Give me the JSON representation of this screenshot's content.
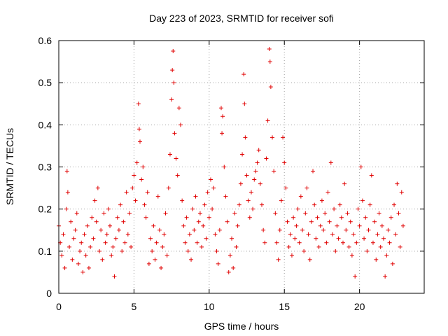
{
  "chart_data": {
    "type": "scatter",
    "title": "Day 223 of 2023, SRMTID for receiver sofi",
    "xlabel": "GPS time / hours",
    "ylabel": "SRMTID / TECUs",
    "xlim": [
      0,
      24.3
    ],
    "ylim": [
      0,
      0.6
    ],
    "x_ticks": [
      0,
      5,
      10,
      15,
      20
    ],
    "x_tick_labels": [
      "0",
      "5",
      "10",
      "15",
      "20"
    ],
    "y_ticks": [
      0,
      0.1,
      0.2,
      0.3,
      0.4,
      0.5,
      0.6
    ],
    "y_tick_labels": [
      "0",
      "0.1",
      "0.2",
      "0.3",
      "0.4",
      "0.5",
      "0.6"
    ],
    "grid": true,
    "marker": "plus",
    "series_color": "#e00000",
    "series": [
      {
        "name": "SRMTID",
        "points": [
          [
            0.0,
            0.16
          ],
          [
            0.1,
            0.12
          ],
          [
            0.2,
            0.09
          ],
          [
            0.3,
            0.14
          ],
          [
            0.4,
            0.06
          ],
          [
            0.5,
            0.2
          ],
          [
            0.55,
            0.29
          ],
          [
            0.6,
            0.24
          ],
          [
            0.7,
            0.11
          ],
          [
            0.8,
            0.17
          ],
          [
            0.9,
            0.08
          ],
          [
            1.0,
            0.13
          ],
          [
            1.1,
            0.15
          ],
          [
            1.2,
            0.19
          ],
          [
            1.3,
            0.07
          ],
          [
            1.4,
            0.1
          ],
          [
            1.5,
            0.12
          ],
          [
            1.6,
            0.05
          ],
          [
            1.7,
            0.14
          ],
          [
            1.8,
            0.09
          ],
          [
            1.9,
            0.16
          ],
          [
            2.0,
            0.06
          ],
          [
            2.1,
            0.11
          ],
          [
            2.2,
            0.18
          ],
          [
            2.3,
            0.13
          ],
          [
            2.4,
            0.22
          ],
          [
            2.5,
            0.17
          ],
          [
            2.6,
            0.25
          ],
          [
            2.7,
            0.1
          ],
          [
            2.8,
            0.15
          ],
          [
            2.9,
            0.08
          ],
          [
            3.0,
            0.19
          ],
          [
            3.1,
            0.12
          ],
          [
            3.2,
            0.14
          ],
          [
            3.3,
            0.2
          ],
          [
            3.4,
            0.16
          ],
          [
            3.5,
            0.09
          ],
          [
            3.6,
            0.11
          ],
          [
            3.7,
            0.04
          ],
          [
            3.8,
            0.13
          ],
          [
            3.9,
            0.18
          ],
          [
            4.0,
            0.15
          ],
          [
            4.1,
            0.21
          ],
          [
            4.2,
            0.1
          ],
          [
            4.3,
            0.17
          ],
          [
            4.4,
            0.12
          ],
          [
            4.5,
            0.24
          ],
          [
            4.6,
            0.14
          ],
          [
            4.7,
            0.19
          ],
          [
            4.8,
            0.11
          ],
          [
            4.9,
            0.25
          ],
          [
            5.0,
            0.28
          ],
          [
            5.1,
            0.22
          ],
          [
            5.2,
            0.31
          ],
          [
            5.3,
            0.45
          ],
          [
            5.35,
            0.39
          ],
          [
            5.4,
            0.36
          ],
          [
            5.5,
            0.27
          ],
          [
            5.6,
            0.3
          ],
          [
            5.7,
            0.21
          ],
          [
            5.8,
            0.18
          ],
          [
            5.9,
            0.24
          ],
          [
            6.0,
            0.07
          ],
          [
            6.1,
            0.13
          ],
          [
            6.2,
            0.1
          ],
          [
            6.3,
            0.16
          ],
          [
            6.4,
            0.08
          ],
          [
            6.5,
            0.12
          ],
          [
            6.6,
            0.23
          ],
          [
            6.7,
            0.15
          ],
          [
            6.8,
            0.06
          ],
          [
            6.9,
            0.11
          ],
          [
            7.0,
            0.14
          ],
          [
            7.1,
            0.19
          ],
          [
            7.2,
            0.09
          ],
          [
            7.3,
            0.25
          ],
          [
            7.4,
            0.33
          ],
          [
            7.5,
            0.46
          ],
          [
            7.55,
            0.53
          ],
          [
            7.6,
            0.575
          ],
          [
            7.65,
            0.5
          ],
          [
            7.7,
            0.38
          ],
          [
            7.8,
            0.32
          ],
          [
            7.9,
            0.28
          ],
          [
            8.0,
            0.44
          ],
          [
            8.1,
            0.4
          ],
          [
            8.2,
            0.22
          ],
          [
            8.3,
            0.16
          ],
          [
            8.4,
            0.12
          ],
          [
            8.5,
            0.18
          ],
          [
            8.6,
            0.1
          ],
          [
            8.7,
            0.14
          ],
          [
            8.8,
            0.08
          ],
          [
            8.9,
            0.2
          ],
          [
            9.0,
            0.15
          ],
          [
            9.1,
            0.23
          ],
          [
            9.2,
            0.12
          ],
          [
            9.3,
            0.17
          ],
          [
            9.4,
            0.19
          ],
          [
            9.5,
            0.11
          ],
          [
            9.6,
            0.16
          ],
          [
            9.7,
            0.21
          ],
          [
            9.8,
            0.13
          ],
          [
            9.9,
            0.24
          ],
          [
            10.0,
            0.18
          ],
          [
            10.1,
            0.27
          ],
          [
            10.2,
            0.2
          ],
          [
            10.3,
            0.25
          ],
          [
            10.4,
            0.14
          ],
          [
            10.5,
            0.1
          ],
          [
            10.6,
            0.07
          ],
          [
            10.7,
            0.15
          ],
          [
            10.8,
            0.44
          ],
          [
            10.85,
            0.38
          ],
          [
            10.9,
            0.42
          ],
          [
            11.0,
            0.3
          ],
          [
            11.1,
            0.23
          ],
          [
            11.2,
            0.17
          ],
          [
            11.3,
            0.05
          ],
          [
            11.4,
            0.09
          ],
          [
            11.5,
            0.13
          ],
          [
            11.6,
            0.06
          ],
          [
            11.7,
            0.19
          ],
          [
            11.8,
            0.11
          ],
          [
            11.9,
            0.16
          ],
          [
            12.0,
            0.21
          ],
          [
            12.1,
            0.26
          ],
          [
            12.2,
            0.33
          ],
          [
            12.3,
            0.52
          ],
          [
            12.35,
            0.45
          ],
          [
            12.4,
            0.37
          ],
          [
            12.5,
            0.28
          ],
          [
            12.6,
            0.22
          ],
          [
            12.7,
            0.18
          ],
          [
            12.8,
            0.24
          ],
          [
            12.9,
            0.2
          ],
          [
            13.0,
            0.27
          ],
          [
            13.1,
            0.29
          ],
          [
            13.2,
            0.31
          ],
          [
            13.3,
            0.34
          ],
          [
            13.4,
            0.26
          ],
          [
            13.5,
            0.21
          ],
          [
            13.6,
            0.15
          ],
          [
            13.7,
            0.12
          ],
          [
            13.8,
            0.32
          ],
          [
            13.9,
            0.41
          ],
          [
            14.0,
            0.58
          ],
          [
            14.05,
            0.55
          ],
          [
            14.1,
            0.49
          ],
          [
            14.2,
            0.37
          ],
          [
            14.3,
            0.29
          ],
          [
            14.4,
            0.19
          ],
          [
            14.5,
            0.12
          ],
          [
            14.6,
            0.08
          ],
          [
            14.7,
            0.15
          ],
          [
            14.8,
            0.22
          ],
          [
            14.9,
            0.37
          ],
          [
            15.0,
            0.31
          ],
          [
            15.1,
            0.25
          ],
          [
            15.2,
            0.17
          ],
          [
            15.3,
            0.11
          ],
          [
            15.4,
            0.14
          ],
          [
            15.5,
            0.09
          ],
          [
            15.6,
            0.18
          ],
          [
            15.7,
            0.13
          ],
          [
            15.8,
            0.16
          ],
          [
            15.9,
            0.2
          ],
          [
            16.0,
            0.12
          ],
          [
            16.1,
            0.23
          ],
          [
            16.2,
            0.15
          ],
          [
            16.3,
            0.1
          ],
          [
            16.4,
            0.19
          ],
          [
            16.5,
            0.25
          ],
          [
            16.6,
            0.14
          ],
          [
            16.7,
            0.08
          ],
          [
            16.8,
            0.17
          ],
          [
            16.9,
            0.29
          ],
          [
            17.0,
            0.21
          ],
          [
            17.1,
            0.13
          ],
          [
            17.2,
            0.18
          ],
          [
            17.3,
            0.11
          ],
          [
            17.4,
            0.16
          ],
          [
            17.5,
            0.22
          ],
          [
            17.6,
            0.15
          ],
          [
            17.7,
            0.19
          ],
          [
            17.8,
            0.12
          ],
          [
            17.9,
            0.24
          ],
          [
            18.0,
            0.17
          ],
          [
            18.1,
            0.31
          ],
          [
            18.2,
            0.14
          ],
          [
            18.3,
            0.2
          ],
          [
            18.4,
            0.1
          ],
          [
            18.5,
            0.16
          ],
          [
            18.6,
            0.13
          ],
          [
            18.7,
            0.21
          ],
          [
            18.8,
            0.18
          ],
          [
            18.9,
            0.12
          ],
          [
            19.0,
            0.26
          ],
          [
            19.1,
            0.15
          ],
          [
            19.2,
            0.19
          ],
          [
            19.3,
            0.11
          ],
          [
            19.4,
            0.17
          ],
          [
            19.5,
            0.09
          ],
          [
            19.6,
            0.14
          ],
          [
            19.7,
            0.04
          ],
          [
            19.8,
            0.12
          ],
          [
            19.9,
            0.2
          ],
          [
            20.0,
            0.16
          ],
          [
            20.1,
            0.3
          ],
          [
            20.2,
            0.22
          ],
          [
            20.3,
            0.13
          ],
          [
            20.4,
            0.18
          ],
          [
            20.5,
            0.1
          ],
          [
            20.6,
            0.15
          ],
          [
            20.7,
            0.21
          ],
          [
            20.8,
            0.28
          ],
          [
            20.9,
            0.12
          ],
          [
            21.0,
            0.17
          ],
          [
            21.1,
            0.08
          ],
          [
            21.2,
            0.14
          ],
          [
            21.3,
            0.19
          ],
          [
            21.4,
            0.11
          ],
          [
            21.5,
            0.16
          ],
          [
            21.6,
            0.13
          ],
          [
            21.7,
            0.04
          ],
          [
            21.8,
            0.09
          ],
          [
            21.9,
            0.15
          ],
          [
            22.0,
            0.12
          ],
          [
            22.1,
            0.18
          ],
          [
            22.2,
            0.07
          ],
          [
            22.3,
            0.21
          ],
          [
            22.4,
            0.14
          ],
          [
            22.5,
            0.26
          ],
          [
            22.6,
            0.19
          ],
          [
            22.7,
            0.11
          ],
          [
            22.8,
            0.24
          ],
          [
            22.9,
            0.16
          ]
        ]
      }
    ]
  }
}
